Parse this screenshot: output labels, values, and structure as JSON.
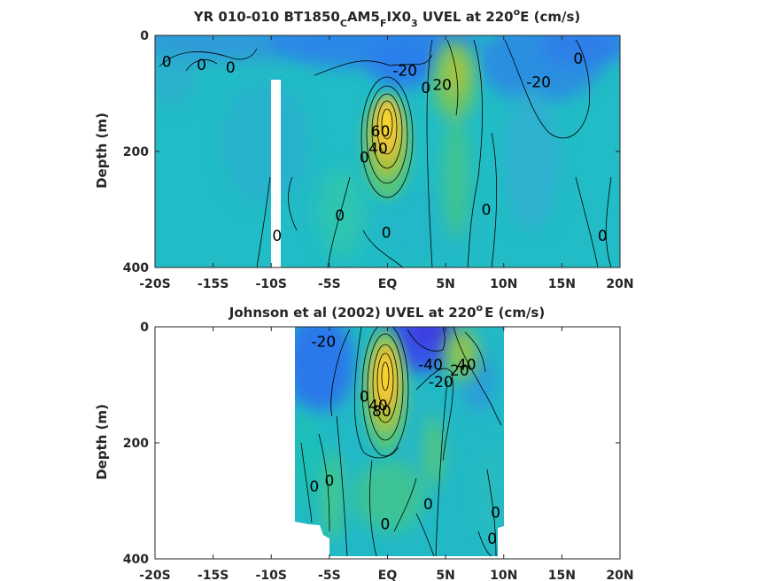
{
  "chart_data": [
    {
      "type": "heatmap",
      "title_main": "YR 010-010 BT1850",
      "title_sub1": "C",
      "title_mid1": "AM5",
      "title_sub2": "F",
      "title_mid2": "IX0",
      "title_sub3": "3",
      "title_tail1": " UVEL at 220",
      "title_sup": "o",
      "title_tail2": "E (cm/s)",
      "ylabel": "Depth (m)",
      "xlabel": "",
      "x_ticks": [
        "-20S",
        "-15S",
        "-10S",
        "-5S",
        "EQ",
        "5N",
        "10N",
        "15N",
        "20N"
      ],
      "x_tick_values": [
        -20,
        -15,
        -10,
        -5,
        0,
        5,
        10,
        15,
        20
      ],
      "y_ticks": [
        "0",
        "200",
        "400"
      ],
      "y_tick_values": [
        0,
        200,
        400
      ],
      "xlim": [
        -20,
        20
      ],
      "ylim": [
        0,
        400
      ],
      "y_reversed": true,
      "colormap": "parula",
      "contour_interval": 20,
      "features": [
        {
          "kind": "max",
          "lat": 0.0,
          "depth": 140,
          "value": 100,
          "note": "Equatorial Undercurrent core"
        },
        {
          "kind": "max",
          "lat": 6.5,
          "depth": 70,
          "value": 20
        },
        {
          "kind": "min",
          "lat": 3.0,
          "depth": 40,
          "value": -30
        },
        {
          "kind": "min",
          "lat": 14.0,
          "depth": 60,
          "value": -28
        },
        {
          "kind": "min",
          "lat": -10.0,
          "depth": 40,
          "value": -18
        }
      ],
      "contour_labels": [
        {
          "text": "0",
          "lat": -19.0,
          "depth": 45
        },
        {
          "text": "0",
          "lat": -16.0,
          "depth": 50
        },
        {
          "text": "0",
          "lat": -13.5,
          "depth": 55
        },
        {
          "text": "-20",
          "lat": 1.5,
          "depth": 60
        },
        {
          "text": "0",
          "lat": 3.3,
          "depth": 90
        },
        {
          "text": "20",
          "lat": 4.7,
          "depth": 85
        },
        {
          "text": "-20",
          "lat": 13.0,
          "depth": 80
        },
        {
          "text": "0",
          "lat": 16.4,
          "depth": 40
        },
        {
          "text": "0",
          "lat": -2.0,
          "depth": 210
        },
        {
          "text": "40",
          "lat": -0.8,
          "depth": 195
        },
        {
          "text": "60",
          "lat": -0.6,
          "depth": 165
        },
        {
          "text": "0",
          "lat": -4.1,
          "depth": 310
        },
        {
          "text": "0",
          "lat": -0.1,
          "depth": 340
        },
        {
          "text": "0",
          "lat": -9.5,
          "depth": 345
        },
        {
          "text": "0",
          "lat": 8.5,
          "depth": 300
        },
        {
          "text": "0",
          "lat": 18.5,
          "depth": 345
        }
      ],
      "white_gap": {
        "lat": [
          -10.6,
          -9.9
        ],
        "depth": [
          75,
          400
        ]
      }
    },
    {
      "type": "heatmap",
      "title_main": "Johnson et al (2002) UVEL at 220",
      "title_sup": "o",
      "title_tail": "E (cm/s)",
      "ylabel": "Depth (m)",
      "xlabel": "",
      "x_ticks": [
        "-20S",
        "-15S",
        "-10S",
        "-5S",
        "EQ",
        "5N",
        "10N",
        "15N",
        "20N"
      ],
      "x_tick_values": [
        -20,
        -15,
        -10,
        -5,
        0,
        5,
        10,
        15,
        20
      ],
      "y_ticks": [
        "0",
        "200",
        "400"
      ],
      "y_tick_values": [
        0,
        200,
        400
      ],
      "xlim": [
        -20,
        20
      ],
      "ylim": [
        0,
        400
      ],
      "y_reversed": true,
      "colormap": "parula",
      "contour_interval": 20,
      "data_extent_lat": [
        -8,
        10
      ],
      "features": [
        {
          "kind": "max",
          "lat": 0.0,
          "depth": 110,
          "value": 100,
          "note": "Equatorial Undercurrent core"
        },
        {
          "kind": "max",
          "lat": 8.5,
          "depth": 50,
          "value": 40
        },
        {
          "kind": "min",
          "lat": 3.0,
          "depth": 30,
          "value": -50
        },
        {
          "kind": "min",
          "lat": -6.5,
          "depth": 40,
          "value": -30
        }
      ],
      "contour_labels": [
        {
          "text": "-20",
          "lat": -5.5,
          "depth": 25
        },
        {
          "text": "-40",
          "lat": 3.7,
          "depth": 65
        },
        {
          "text": "-20",
          "lat": 4.6,
          "depth": 95
        },
        {
          "text": "20",
          "lat": 6.2,
          "depth": 75
        },
        {
          "text": "40",
          "lat": 6.8,
          "depth": 65
        },
        {
          "text": "0",
          "lat": -2.0,
          "depth": 120
        },
        {
          "text": "40",
          "lat": -0.8,
          "depth": 135
        },
        {
          "text": "80",
          "lat": -0.5,
          "depth": 145
        },
        {
          "text": "0",
          "lat": -6.3,
          "depth": 275
        },
        {
          "text": "0",
          "lat": -5.0,
          "depth": 265
        },
        {
          "text": "0",
          "lat": 3.5,
          "depth": 305
        },
        {
          "text": "0",
          "lat": -0.2,
          "depth": 340
        },
        {
          "text": "0",
          "lat": 9.3,
          "depth": 320
        },
        {
          "text": "0",
          "lat": 9.0,
          "depth": 365
        }
      ]
    }
  ]
}
